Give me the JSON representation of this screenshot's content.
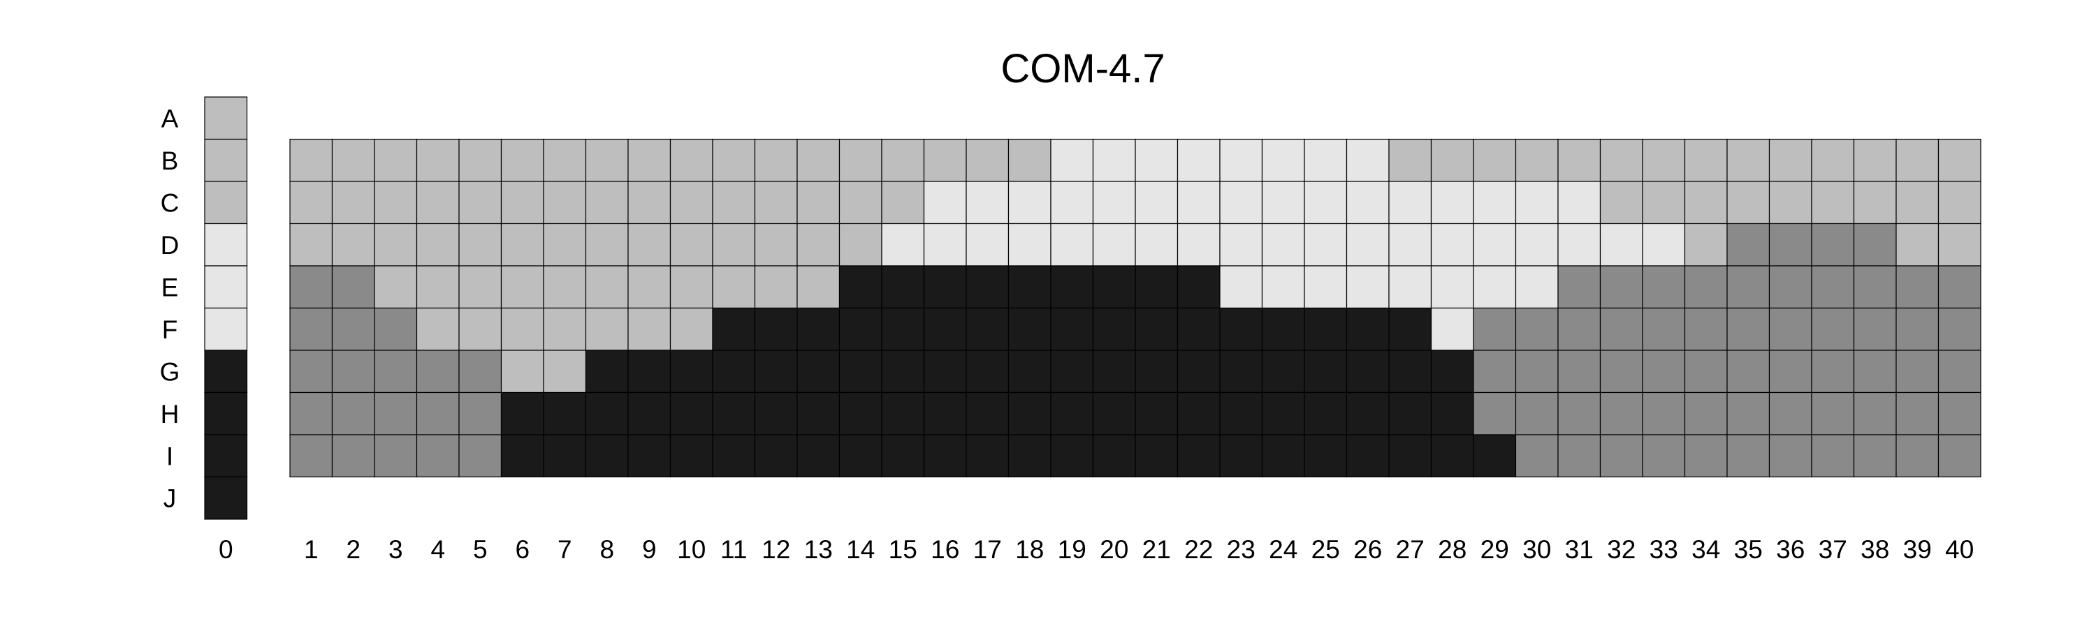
{
  "chart_data": {
    "type": "heatmap",
    "title": "COM-4.7",
    "row_labels": [
      "A",
      "B",
      "C",
      "D",
      "E",
      "F",
      "G",
      "H",
      "I",
      "J"
    ],
    "column_labels": [
      "1",
      "2",
      "3",
      "4",
      "5",
      "6",
      "7",
      "8",
      "9",
      "10",
      "11",
      "12",
      "13",
      "14",
      "15",
      "16",
      "17",
      "18",
      "19",
      "20",
      "21",
      "22",
      "23",
      "24",
      "25",
      "26",
      "27",
      "28",
      "29",
      "30",
      "31",
      "32",
      "33",
      "34",
      "35",
      "36",
      "37",
      "38",
      "39",
      "40"
    ],
    "reference_column": {
      "label": "0",
      "values": [
        2,
        2,
        2,
        1,
        1,
        1,
        4,
        4,
        4,
        4
      ]
    },
    "grid_rows": [
      "B",
      "C",
      "D",
      "E",
      "F",
      "G",
      "H",
      "I"
    ],
    "grid_values": [
      [
        2,
        2,
        2,
        2,
        2,
        2,
        2,
        2,
        2,
        2,
        2,
        2,
        2,
        2,
        2,
        2,
        2,
        2,
        1,
        1,
        1,
        1,
        1,
        1,
        1,
        1,
        2,
        2,
        2,
        2,
        2,
        2,
        2,
        2,
        2,
        2,
        2,
        2,
        2,
        2
      ],
      [
        2,
        2,
        2,
        2,
        2,
        2,
        2,
        2,
        2,
        2,
        2,
        2,
        2,
        2,
        2,
        1,
        1,
        1,
        1,
        1,
        1,
        1,
        1,
        1,
        1,
        1,
        1,
        1,
        1,
        1,
        1,
        2,
        2,
        2,
        2,
        2,
        2,
        2,
        2,
        2
      ],
      [
        2,
        2,
        2,
        2,
        2,
        2,
        2,
        2,
        2,
        2,
        2,
        2,
        2,
        2,
        1,
        1,
        1,
        1,
        1,
        1,
        1,
        1,
        1,
        1,
        1,
        1,
        1,
        1,
        1,
        1,
        1,
        1,
        1,
        2,
        3,
        3,
        3,
        3,
        2,
        2
      ],
      [
        3,
        3,
        2,
        2,
        2,
        2,
        2,
        2,
        2,
        2,
        2,
        2,
        2,
        4,
        4,
        4,
        4,
        4,
        4,
        4,
        4,
        4,
        1,
        1,
        1,
        1,
        1,
        1,
        1,
        1,
        3,
        3,
        3,
        3,
        3,
        3,
        3,
        3,
        3,
        3
      ],
      [
        3,
        3,
        3,
        2,
        2,
        2,
        2,
        2,
        2,
        2,
        4,
        4,
        4,
        4,
        4,
        4,
        4,
        4,
        4,
        4,
        4,
        4,
        4,
        4,
        4,
        4,
        4,
        1,
        3,
        3,
        3,
        3,
        3,
        3,
        3,
        3,
        3,
        3,
        3,
        3
      ],
      [
        3,
        3,
        3,
        3,
        3,
        2,
        2,
        4,
        4,
        4,
        4,
        4,
        4,
        4,
        4,
        4,
        4,
        4,
        4,
        4,
        4,
        4,
        4,
        4,
        4,
        4,
        4,
        4,
        3,
        3,
        3,
        3,
        3,
        3,
        3,
        3,
        3,
        3,
        3,
        3
      ],
      [
        3,
        3,
        3,
        3,
        3,
        4,
        4,
        4,
        4,
        4,
        4,
        4,
        4,
        4,
        4,
        4,
        4,
        4,
        4,
        4,
        4,
        4,
        4,
        4,
        4,
        4,
        4,
        4,
        3,
        3,
        3,
        3,
        3,
        3,
        3,
        3,
        3,
        3,
        3,
        3
      ],
      [
        3,
        3,
        3,
        3,
        3,
        4,
        4,
        4,
        4,
        4,
        4,
        4,
        4,
        4,
        4,
        4,
        4,
        4,
        4,
        4,
        4,
        4,
        4,
        4,
        4,
        4,
        4,
        4,
        4,
        3,
        3,
        3,
        3,
        3,
        3,
        3,
        3,
        3,
        3,
        3
      ]
    ],
    "levels": {
      "1": "#e6e6e6",
      "2": "#bebebe",
      "3": "#8a8a8a",
      "4": "#1a1a1a"
    },
    "grid": true,
    "legend": "none"
  }
}
